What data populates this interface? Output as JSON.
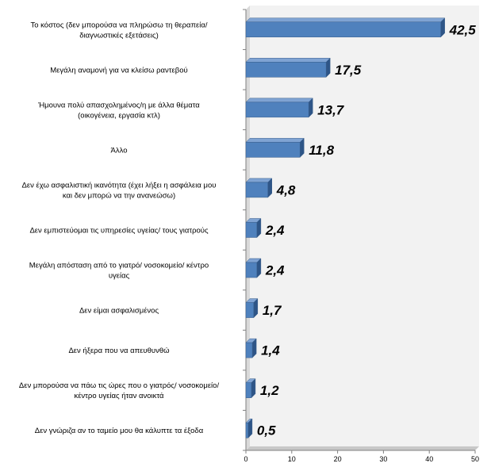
{
  "chart_data": {
    "type": "bar",
    "orientation": "horizontal",
    "categories": [
      [
        "Το κόστος (δεν μπορούσα να πληρώσω τη θεραπεία/",
        "διαγνωστικές εξετάσεις)"
      ],
      [
        "Μεγάλη αναμονή για να κλείσω ραντεβού"
      ],
      [
        "Ήμουνα πολύ απασχολημένος/η με άλλα θέματα",
        "(οικογένεια, εργασία κτλ)"
      ],
      [
        "Άλλο"
      ],
      [
        "Δεν έχω ασφαλιστική ικανότητα (έχει λήξει η ασφάλεια μου",
        "και δεν μπορώ να την ανανεώσω)"
      ],
      [
        "Δεν εμπιστεύομαι τις υπηρεσίες υγείας/ τους γιατρούς"
      ],
      [
        "Μεγάλη απόσταση από το γιατρό/ νοσοκομείο/ κέντρο",
        "υγείας"
      ],
      [
        "Δεν είμαι ασφαλισμένος"
      ],
      [
        "Δεν ήξερα που να απευθυνθώ"
      ],
      [
        "Δεν μπορούσα να πάω τις ώρες που ο γιατρός/ νοσοκομείο/",
        "κέντρο υγείας ήταν ανοικτά"
      ],
      [
        "Δεν γνώριζα αν το ταμείο μου θα κάλυπτε τα έξοδα"
      ]
    ],
    "values": [
      42.5,
      17.5,
      13.7,
      11.8,
      4.8,
      2.4,
      2.4,
      1.7,
      1.4,
      1.2,
      0.5
    ],
    "value_labels": [
      "42,5",
      "17,5",
      "13,7",
      "11,8",
      "4,8",
      "2,4",
      "2,4",
      "1,7",
      "1,4",
      "1,2",
      "0,5"
    ],
    "xlim": [
      0,
      50
    ],
    "xticks": [
      "0",
      "10",
      "20",
      "30",
      "40",
      "50"
    ],
    "title": "",
    "xlabel": "",
    "ylabel": "",
    "grid": false,
    "legend": "none",
    "colors": {
      "bar_front": "#4F81BD",
      "bar_top": "#7FA3D3",
      "bar_side": "#2E5587",
      "bar_border": "#385D8A",
      "back_wall": "#F2F2F2",
      "side_wall": "#D9D9D9",
      "floor": "#C8C8C8",
      "axis": "#808080"
    }
  }
}
